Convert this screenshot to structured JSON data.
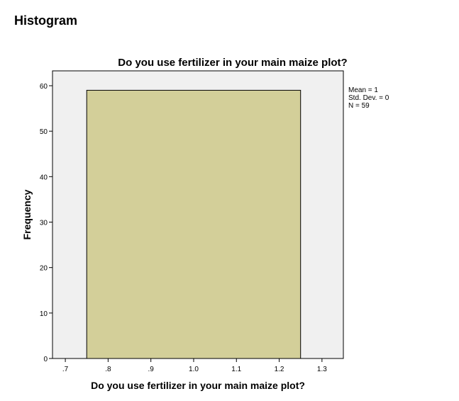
{
  "heading": "Histogram",
  "chart_data": {
    "type": "bar",
    "title": "Do you use fertilizer in your main maize plot?",
    "xlabel": "Do you use fertilizer in your main maize plot?",
    "ylabel": "Frequency",
    "xlim": [
      0.67,
      1.35
    ],
    "ylim": [
      0,
      60
    ],
    "x_ticks": [
      {
        "value": 0.7,
        "label": ".7"
      },
      {
        "value": 0.8,
        "label": ".8"
      },
      {
        "value": 0.9,
        "label": ".9"
      },
      {
        "value": 1.0,
        "label": "1.0"
      },
      {
        "value": 1.1,
        "label": "1.1"
      },
      {
        "value": 1.2,
        "label": "1.2"
      },
      {
        "value": 1.3,
        "label": "1.3"
      }
    ],
    "y_ticks": [
      0,
      10,
      20,
      30,
      40,
      50,
      60
    ],
    "bins": [
      {
        "x0": 0.75,
        "x1": 1.25,
        "value": 59
      }
    ],
    "grid": false,
    "stats": [
      "Mean = 1",
      "Std. Dev. = 0",
      "N = 59"
    ],
    "colors": {
      "bar": "#d3cf99",
      "plot_bg": "#f0f0f0",
      "bar_stroke": "#000000"
    }
  }
}
